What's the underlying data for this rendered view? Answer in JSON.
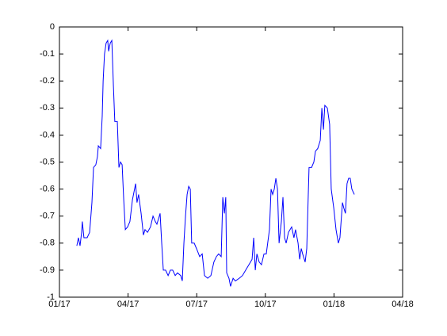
{
  "chart_data": {
    "type": "line",
    "x": [
      0.76,
      0.83,
      0.9,
      0.97,
      1.0,
      1.07,
      1.21,
      1.32,
      1.42,
      1.49,
      1.59,
      1.66,
      1.7,
      1.8,
      1.87,
      1.91,
      1.97,
      2.04,
      2.11,
      2.15,
      2.22,
      2.29,
      2.36,
      2.42,
      2.53,
      2.6,
      2.67,
      2.74,
      2.81,
      2.88,
      2.98,
      3.08,
      3.19,
      3.33,
      3.39,
      3.46,
      3.57,
      3.67,
      3.74,
      3.85,
      3.98,
      4.09,
      4.19,
      4.26,
      4.33,
      4.4,
      4.47,
      4.54,
      4.64,
      4.75,
      4.85,
      4.95,
      5.06,
      5.16,
      5.3,
      5.37,
      5.44,
      5.51,
      5.58,
      5.65,
      5.72,
      5.78,
      5.89,
      5.99,
      6.13,
      6.24,
      6.34,
      6.48,
      6.62,
      6.75,
      6.86,
      6.96,
      7.07,
      7.14,
      7.21,
      7.27,
      7.31,
      7.41,
      7.48,
      7.59,
      7.69,
      7.86,
      8.0,
      8.14,
      8.28,
      8.42,
      8.49,
      8.56,
      8.63,
      8.73,
      8.83,
      8.94,
      9.04,
      9.18,
      9.25,
      9.32,
      9.39,
      9.46,
      9.53,
      9.6,
      9.7,
      9.77,
      9.84,
      9.91,
      10.01,
      10.15,
      10.25,
      10.32,
      10.43,
      10.5,
      10.57,
      10.63,
      10.74,
      10.81,
      10.91,
      11.02,
      11.12,
      11.19,
      11.29,
      11.4,
      11.47,
      11.54,
      11.6,
      11.71,
      11.81,
      11.88,
      11.99,
      12.09,
      12.19,
      12.26,
      12.37,
      12.43,
      12.5,
      12.57,
      12.64,
      12.71,
      12.78,
      12.89
    ],
    "series": [
      {
        "color": "#0000ff",
        "values": [
          -0.81,
          -0.78,
          -0.81,
          -0.76,
          -0.72,
          -0.78,
          -0.78,
          -0.76,
          -0.65,
          -0.52,
          -0.51,
          -0.48,
          -0.44,
          -0.45,
          -0.33,
          -0.2,
          -0.1,
          -0.06,
          -0.05,
          -0.09,
          -0.06,
          -0.05,
          -0.22,
          -0.35,
          -0.35,
          -0.52,
          -0.5,
          -0.51,
          -0.64,
          -0.75,
          -0.74,
          -0.72,
          -0.64,
          -0.58,
          -0.65,
          -0.62,
          -0.69,
          -0.77,
          -0.75,
          -0.76,
          -0.74,
          -0.7,
          -0.72,
          -0.73,
          -0.71,
          -0.69,
          -0.8,
          -0.9,
          -0.9,
          -0.92,
          -0.9,
          -0.9,
          -0.92,
          -0.91,
          -0.92,
          -0.94,
          -0.8,
          -0.7,
          -0.62,
          -0.59,
          -0.6,
          -0.8,
          -0.8,
          -0.82,
          -0.85,
          -0.84,
          -0.92,
          -0.93,
          -0.92,
          -0.87,
          -0.85,
          -0.84,
          -0.85,
          -0.63,
          -0.69,
          -0.63,
          -0.91,
          -0.93,
          -0.96,
          -0.93,
          -0.94,
          -0.93,
          -0.92,
          -0.9,
          -0.88,
          -0.86,
          -0.78,
          -0.9,
          -0.84,
          -0.87,
          -0.88,
          -0.84,
          -0.84,
          -0.75,
          -0.6,
          -0.62,
          -0.6,
          -0.56,
          -0.6,
          -0.8,
          -0.72,
          -0.63,
          -0.78,
          -0.8,
          -0.76,
          -0.74,
          -0.78,
          -0.75,
          -0.8,
          -0.86,
          -0.82,
          -0.84,
          -0.87,
          -0.82,
          -0.52,
          -0.52,
          -0.5,
          -0.46,
          -0.45,
          -0.42,
          -0.3,
          -0.38,
          -0.29,
          -0.3,
          -0.36,
          -0.6,
          -0.67,
          -0.75,
          -0.8,
          -0.78,
          -0.65,
          -0.67,
          -0.69,
          -0.58,
          -0.56,
          -0.56,
          -0.6,
          -0.62
        ]
      }
    ],
    "xlim": [
      0,
      15
    ],
    "xticks": [
      {
        "value": 0,
        "label": "01/17"
      },
      {
        "value": 3,
        "label": "04/17"
      },
      {
        "value": 6,
        "label": "07/17"
      },
      {
        "value": 9,
        "label": "10/17"
      },
      {
        "value": 12,
        "label": "01/18"
      },
      {
        "value": 15,
        "label": "04/18"
      }
    ],
    "ylim": [
      -1,
      0
    ],
    "yticks": [
      0,
      -0.1,
      -0.2,
      -0.3,
      -0.4,
      -0.5,
      -0.6,
      -0.7,
      -0.8,
      -0.9,
      -1
    ]
  }
}
